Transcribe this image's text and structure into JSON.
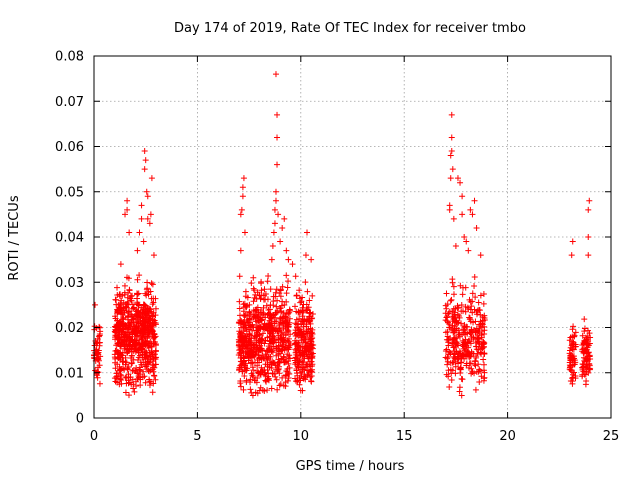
{
  "chart_data": {
    "type": "scatter",
    "title": "Day 174 of 2019, Rate Of TEC Index for receiver tmbo",
    "xlabel": "GPS time / hours",
    "ylabel": "ROTI / TECUs",
    "xlim": [
      0,
      25
    ],
    "ylim": [
      0,
      0.08
    ],
    "xticks": [
      "0",
      "5",
      "10",
      "15",
      "20",
      "25"
    ],
    "yticks": [
      "0",
      "0.01",
      "0.02",
      "0.03",
      "0.04",
      "0.05",
      "0.06",
      "0.07",
      "0.08"
    ],
    "grid": true,
    "marker": "+",
    "color": "#ff0000",
    "series": [
      {
        "name": "ROTI",
        "clusters": [
          {
            "x_range": [
              0.0,
              0.3
            ],
            "y_range": [
              0.006,
              0.024
            ],
            "count": 50
          },
          {
            "x_range": [
              1.0,
              3.0
            ],
            "y_range": [
              0.004,
              0.035
            ],
            "count": 650
          },
          {
            "x_range": [
              7.0,
              8.0
            ],
            "y_range": [
              0.004,
              0.033
            ],
            "count": 280
          },
          {
            "x_range": [
              8.0,
              9.5
            ],
            "y_range": [
              0.003,
              0.035
            ],
            "count": 360
          },
          {
            "x_range": [
              9.7,
              10.6
            ],
            "y_range": [
              0.004,
              0.033
            ],
            "count": 260
          },
          {
            "x_range": [
              17.0,
              18.9
            ],
            "y_range": [
              0.004,
              0.033
            ],
            "count": 340
          },
          {
            "x_range": [
              23.0,
              23.3
            ],
            "y_range": [
              0.006,
              0.023
            ],
            "count": 60
          },
          {
            "x_range": [
              23.6,
              24.0
            ],
            "y_range": [
              0.005,
              0.024
            ],
            "count": 80
          }
        ],
        "outliers": [
          [
            1.3,
            0.034
          ],
          [
            1.5,
            0.045
          ],
          [
            1.6,
            0.046
          ],
          [
            1.7,
            0.041
          ],
          [
            1.6,
            0.048
          ],
          [
            2.1,
            0.037
          ],
          [
            2.2,
            0.041
          ],
          [
            2.3,
            0.044
          ],
          [
            2.3,
            0.047
          ],
          [
            2.4,
            0.039
          ],
          [
            2.45,
            0.055
          ],
          [
            2.45,
            0.059
          ],
          [
            2.5,
            0.057
          ],
          [
            2.55,
            0.05
          ],
          [
            2.6,
            0.044
          ],
          [
            2.6,
            0.049
          ],
          [
            2.7,
            0.043
          ],
          [
            2.75,
            0.045
          ],
          [
            2.8,
            0.053
          ],
          [
            2.9,
            0.036
          ],
          [
            0.05,
            0.025
          ],
          [
            7.1,
            0.037
          ],
          [
            7.1,
            0.045
          ],
          [
            7.15,
            0.046
          ],
          [
            7.2,
            0.049
          ],
          [
            7.2,
            0.051
          ],
          [
            7.25,
            0.053
          ],
          [
            7.3,
            0.041
          ],
          [
            8.6,
            0.035
          ],
          [
            8.65,
            0.038
          ],
          [
            8.7,
            0.041
          ],
          [
            8.75,
            0.043
          ],
          [
            8.75,
            0.046
          ],
          [
            8.8,
            0.048
          ],
          [
            8.8,
            0.05
          ],
          [
            8.85,
            0.056
          ],
          [
            8.85,
            0.062
          ],
          [
            8.85,
            0.067
          ],
          [
            8.8,
            0.076
          ],
          [
            8.9,
            0.045
          ],
          [
            9.0,
            0.039
          ],
          [
            9.1,
            0.042
          ],
          [
            9.3,
            0.037
          ],
          [
            9.2,
            0.044
          ],
          [
            9.4,
            0.035
          ],
          [
            9.6,
            0.034
          ],
          [
            10.25,
            0.036
          ],
          [
            10.3,
            0.041
          ],
          [
            10.5,
            0.035
          ],
          [
            17.2,
            0.046
          ],
          [
            17.2,
            0.047
          ],
          [
            17.25,
            0.053
          ],
          [
            17.25,
            0.058
          ],
          [
            17.3,
            0.059
          ],
          [
            17.3,
            0.062
          ],
          [
            17.3,
            0.067
          ],
          [
            17.35,
            0.055
          ],
          [
            17.4,
            0.044
          ],
          [
            17.5,
            0.038
          ],
          [
            17.6,
            0.053
          ],
          [
            17.7,
            0.052
          ],
          [
            17.8,
            0.049
          ],
          [
            17.8,
            0.045
          ],
          [
            17.9,
            0.04
          ],
          [
            18.0,
            0.039
          ],
          [
            18.1,
            0.037
          ],
          [
            18.2,
            0.046
          ],
          [
            18.3,
            0.045
          ],
          [
            18.4,
            0.048
          ],
          [
            18.5,
            0.042
          ],
          [
            18.7,
            0.036
          ],
          [
            23.1,
            0.036
          ],
          [
            23.15,
            0.039
          ],
          [
            23.9,
            0.036
          ],
          [
            23.9,
            0.04
          ],
          [
            23.9,
            0.046
          ],
          [
            23.95,
            0.048
          ]
        ]
      }
    ]
  }
}
